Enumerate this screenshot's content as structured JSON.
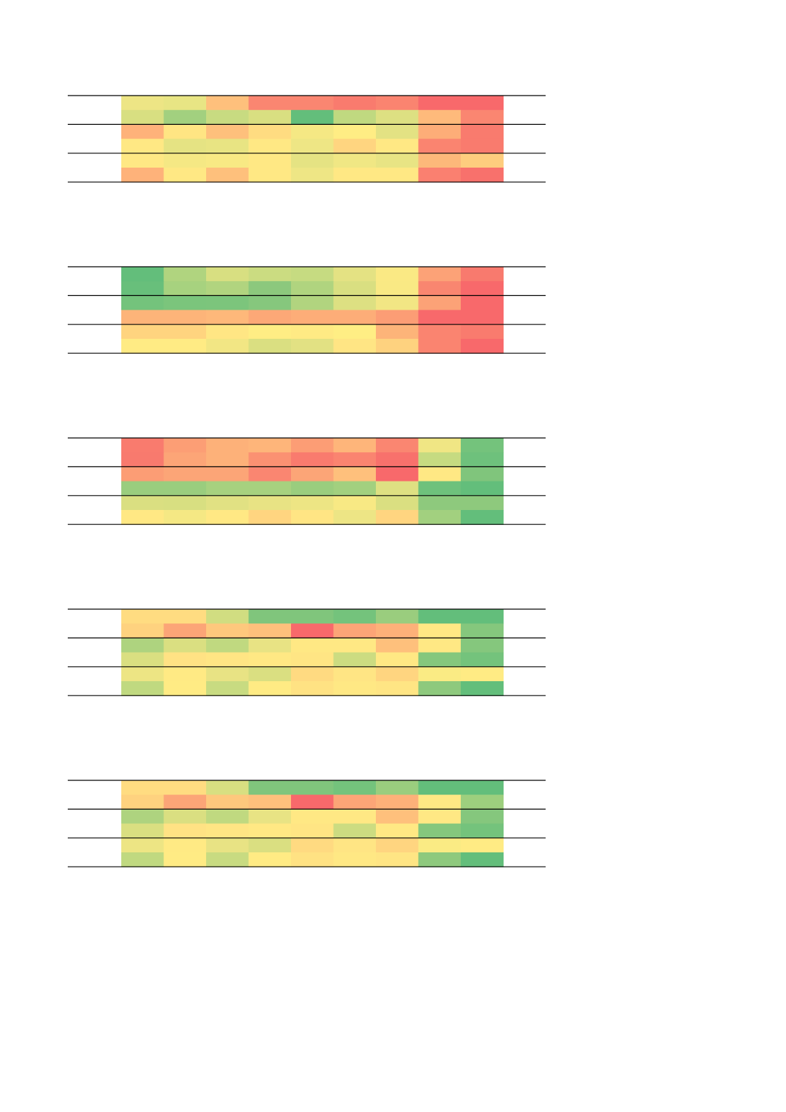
{
  "chart_data": [
    {
      "type": "heatmap",
      "rows": [
        [
          "#ede585",
          "#e8e584",
          "#fec07c",
          "#fa8671",
          "#fa8671",
          "#f97b6e",
          "#fa8470",
          "#f8696b",
          "#f8696b"
        ],
        [
          "#d8df81",
          "#a2d07f",
          "#c8db81",
          "#d9df81",
          "#63be7b",
          "#c0d980",
          "#dde082",
          "#feba7b",
          "#fa8671"
        ],
        [
          "#feb27a",
          "#ffe583",
          "#fec07c",
          "#ffdc81",
          "#f5e884",
          "#ffed84",
          "#e3e283",
          "#fdad78",
          "#f97b6e"
        ],
        [
          "#ffe884",
          "#e5e383",
          "#e8e483",
          "#ffe884",
          "#eee685",
          "#ffd580",
          "#ffe884",
          "#fa8470",
          "#f97b6e"
        ],
        [
          "#ffe884",
          "#f5e884",
          "#f8e984",
          "#ffe884",
          "#e5e383",
          "#f0e784",
          "#e8e484",
          "#fdb87a",
          "#fecd7e"
        ],
        [
          "#feb27a",
          "#ffe884",
          "#fec07c",
          "#ffe884",
          "#eee685",
          "#ffe884",
          "#ffe884",
          "#fa8070",
          "#f8716c"
        ]
      ]
    },
    {
      "type": "heatmap",
      "rows": [
        [
          "#63be7b",
          "#b0d47f",
          "#d8df81",
          "#cbdc81",
          "#c6db81",
          "#e4e283",
          "#fae984",
          "#fca277",
          "#f87a6e"
        ],
        [
          "#68bf7b",
          "#a7d27f",
          "#b1d47f",
          "#8cc87d",
          "#b0d47f",
          "#d9df81",
          "#f9e984",
          "#f98670",
          "#f8696b"
        ],
        [
          "#74c37c",
          "#7bc57c",
          "#7cc57c",
          "#86c77d",
          "#b1d47f",
          "#dde082",
          "#f2e684",
          "#fca277",
          "#f8696b"
        ],
        [
          "#fdb479",
          "#fdb479",
          "#feb87a",
          "#fca877",
          "#fdad78",
          "#fdad78",
          "#fc9d75",
          "#f8696b",
          "#f8696b"
        ],
        [
          "#ffd47f",
          "#ffd47f",
          "#ffe684",
          "#ffed84",
          "#ffea84",
          "#ffee84",
          "#fdb479",
          "#fa8470",
          "#f97b6e"
        ],
        [
          "#ffeb84",
          "#ffeb84",
          "#f2e684",
          "#dadf81",
          "#e2e183",
          "#ffe584",
          "#fed27f",
          "#fa8470",
          "#f8696b"
        ]
      ]
    },
    {
      "type": "heatmap",
      "rows": [
        [
          "#f97b6e",
          "#fc9e75",
          "#fdb179",
          "#feb57a",
          "#fc9d75",
          "#feb57a",
          "#fa8671",
          "#f0e684",
          "#74c37c"
        ],
        [
          "#f87a6e",
          "#fca577",
          "#fdb179",
          "#fb9172",
          "#f97b6e",
          "#fa8470",
          "#f8716c",
          "#c6db81",
          "#6ec17c"
        ],
        [
          "#fc9d75",
          "#fca577",
          "#fca577",
          "#fa8671",
          "#fca577",
          "#fec07c",
          "#f8696b",
          "#ffe884",
          "#80c57c"
        ],
        [
          "#9acd7e",
          "#9acd7e",
          "#a7d17f",
          "#a7d17f",
          "#9acd7e",
          "#a2d07f",
          "#dee082",
          "#6ec17c",
          "#63be7b"
        ],
        [
          "#dadf81",
          "#d8df81",
          "#e1e183",
          "#e8e384",
          "#ede584",
          "#f8e984",
          "#dadf81",
          "#8ec97d",
          "#8ec97d"
        ],
        [
          "#ffe884",
          "#f5e884",
          "#ffe884",
          "#ffd580",
          "#ffe584",
          "#ede585",
          "#ffd580",
          "#a2d07f",
          "#63be7b"
        ]
      ]
    },
    {
      "type": "heatmap",
      "rows": [
        [
          "#ffdc81",
          "#ffdc81",
          "#d1dd81",
          "#80c57c",
          "#80c57c",
          "#74c37c",
          "#9acd7e",
          "#63be7b",
          "#63be7b"
        ],
        [
          "#fed27f",
          "#fca577",
          "#fec87d",
          "#fec07c",
          "#f8696b",
          "#fca577",
          "#fdb179",
          "#ffe884",
          "#85c77d"
        ],
        [
          "#aed37f",
          "#dadf81",
          "#c0d980",
          "#e8e384",
          "#ffe884",
          "#ffe884",
          "#fec07c",
          "#ffe884",
          "#85c77d"
        ],
        [
          "#dadf81",
          "#ffe284",
          "#ffe584",
          "#ffe884",
          "#ffe584",
          "#ccdc81",
          "#ffe884",
          "#85c77d",
          "#74c37c"
        ],
        [
          "#ede584",
          "#ffea84",
          "#e8e384",
          "#dadf81",
          "#ffda81",
          "#ffe584",
          "#ffd580",
          "#faeb84",
          "#ffeb84"
        ],
        [
          "#c0d980",
          "#ffeb84",
          "#c8db81",
          "#ffeb84",
          "#ffe283",
          "#ffe884",
          "#ffe584",
          "#8ec97d",
          "#63be7b"
        ]
      ]
    },
    {
      "type": "heatmap",
      "rows": [
        [
          "#ffdc81",
          "#ffdc81",
          "#d8df81",
          "#80c57c",
          "#80c57c",
          "#74c37c",
          "#9acd7e",
          "#63be7b",
          "#63be7b"
        ],
        [
          "#fed27f",
          "#fca577",
          "#fec87d",
          "#fec07c",
          "#f8696b",
          "#fca577",
          "#fdb179",
          "#ffe884",
          "#9dcf7e"
        ],
        [
          "#aed37f",
          "#dadf81",
          "#c0d980",
          "#e8e384",
          "#ffe884",
          "#ffe884",
          "#fec07c",
          "#ffe884",
          "#85c77d"
        ],
        [
          "#dadf81",
          "#ffe284",
          "#ffe584",
          "#ffe884",
          "#ffe584",
          "#ccdc81",
          "#ffe884",
          "#85c77d",
          "#74c37c"
        ],
        [
          "#ede584",
          "#ffea84",
          "#e8e384",
          "#dadf81",
          "#ffda81",
          "#ffe584",
          "#ffd580",
          "#faeb84",
          "#ffeb84"
        ],
        [
          "#c0d980",
          "#ffeb84",
          "#c8db81",
          "#ffeb84",
          "#ffe283",
          "#ffe884",
          "#ffe584",
          "#8ec97d",
          "#63be7b"
        ]
      ]
    }
  ]
}
